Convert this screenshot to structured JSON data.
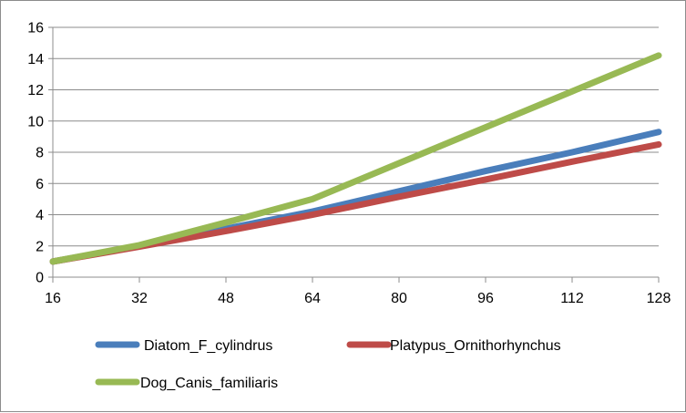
{
  "chart_data": {
    "type": "line",
    "title": "",
    "xlabel": "",
    "ylabel": "",
    "categories": [
      "16",
      "32",
      "48",
      "64",
      "80",
      "96",
      "112",
      "128"
    ],
    "x": [
      16,
      32,
      48,
      64,
      80,
      96,
      112,
      128
    ],
    "ylim": [
      0,
      16
    ],
    "yticks": [
      0,
      2,
      4,
      6,
      8,
      10,
      12,
      14,
      16
    ],
    "grid": true,
    "legend_position": "bottom",
    "series": [
      {
        "name": "Diatom_F_cylindrus",
        "color": "#4a7ebb",
        "values": [
          1,
          2,
          3.1,
          4.2,
          5.5,
          6.8,
          8.0,
          9.3
        ]
      },
      {
        "name": "Platypus_Ornithorhynchus",
        "color": "#be4b48",
        "values": [
          1,
          1.95,
          2.95,
          4.0,
          5.15,
          6.25,
          7.4,
          8.5
        ]
      },
      {
        "name": "Dog_Canis_familiaris",
        "color": "#98b954",
        "values": [
          1,
          2.05,
          3.5,
          5.0,
          7.3,
          9.6,
          11.9,
          14.2
        ]
      }
    ]
  }
}
